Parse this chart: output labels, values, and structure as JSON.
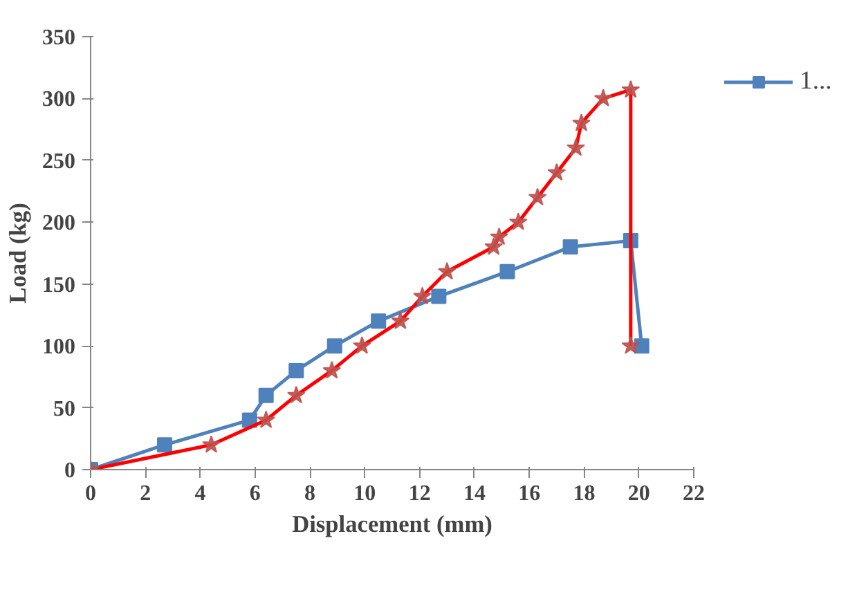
{
  "chart_data": {
    "type": "line",
    "xlabel": "Displacement (mm)",
    "ylabel": "Load (kg)",
    "xlim": [
      0,
      22
    ],
    "xticks": [
      0,
      2,
      4,
      6,
      8,
      10,
      12,
      14,
      16,
      18,
      20,
      22
    ],
    "ylim": [
      0,
      350
    ],
    "yticks": [
      0,
      50,
      100,
      150,
      200,
      250,
      300,
      350
    ],
    "grid": false,
    "legend": "top right",
    "series": [
      {
        "name": "1...",
        "color": "#4f81bd",
        "marker": "square",
        "x": [
          0,
          2.7,
          5.8,
          6.4,
          7.5,
          8.9,
          10.5,
          12.7,
          15.2,
          17.5,
          19.7,
          20.1
        ],
        "values": [
          0,
          20,
          40,
          60,
          80,
          100,
          120,
          140,
          160,
          180,
          185,
          100
        ]
      },
      {
        "color": "#ff0000",
        "marker": "star",
        "x": [
          0,
          4.4,
          6.4,
          7.5,
          8.8,
          9.9,
          11.3,
          12.1,
          13.0,
          14.7,
          14.9,
          15.6,
          16.3,
          17.0,
          17.7,
          17.9,
          18.7,
          19.7,
          19.7
        ],
        "values": [
          0,
          20,
          40,
          60,
          80,
          100,
          120,
          140,
          160,
          180,
          188,
          200,
          220,
          240,
          260,
          280,
          300,
          307,
          100
        ]
      }
    ]
  }
}
